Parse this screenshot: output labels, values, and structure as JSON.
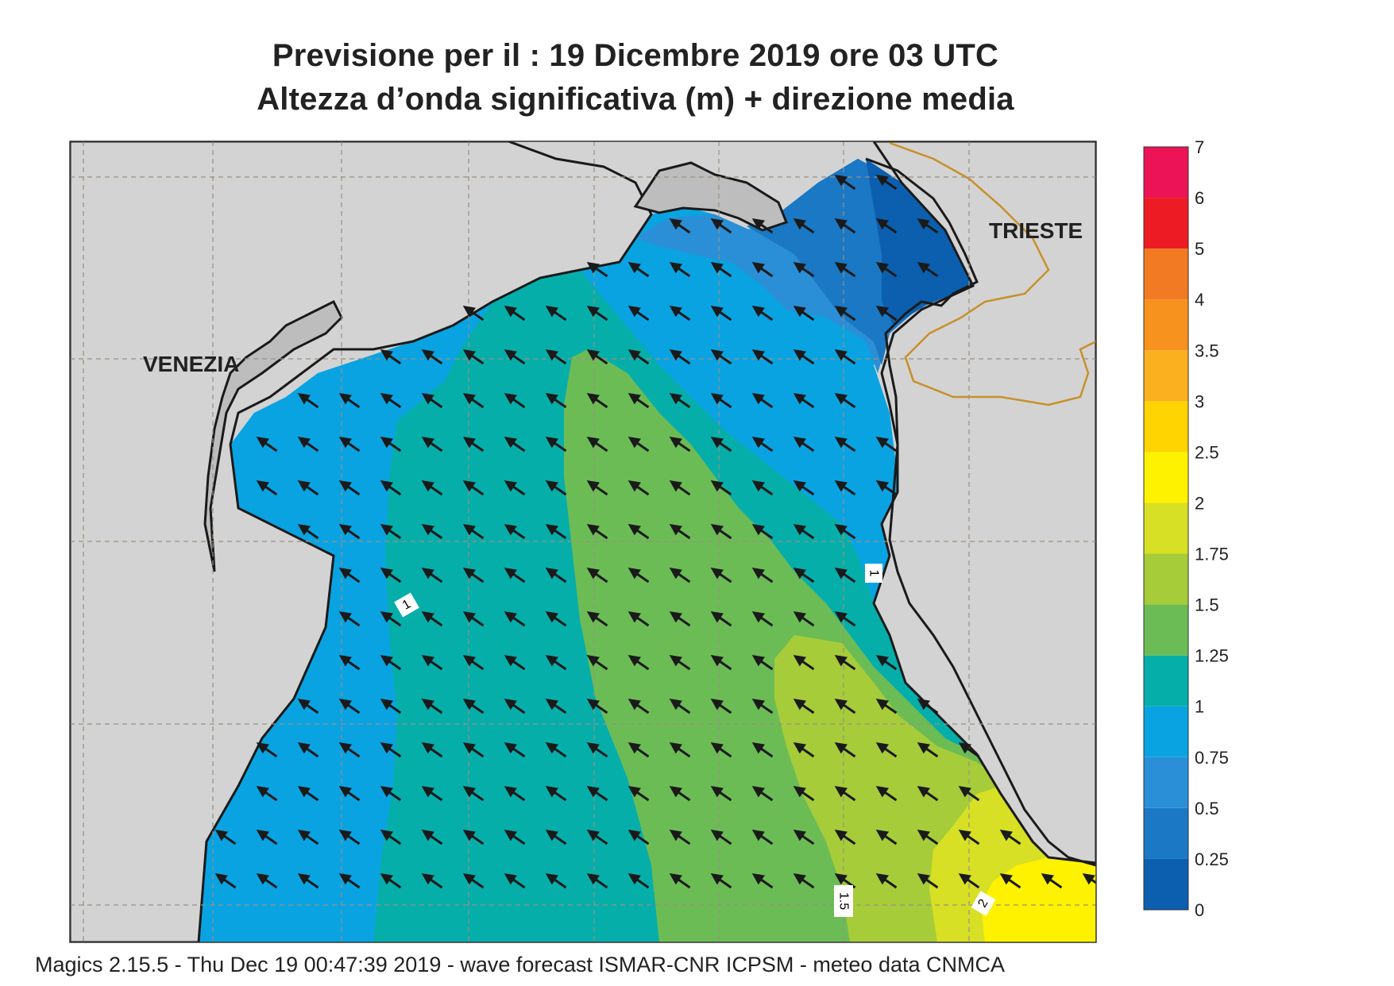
{
  "title": {
    "line1": "Previsione per il  :  19 Dicembre  2019   ore 03 UTC",
    "line2": "Altezza d’onda significativa (m) + direzione media"
  },
  "places": {
    "venezia": "VENEZIA",
    "trieste": "TRIESTE"
  },
  "colorbar": {
    "levels": [
      {
        "label": "0",
        "color": "#0b5fae"
      },
      {
        "label": "0.25",
        "color": "#1a78c4"
      },
      {
        "label": "0.5",
        "color": "#2a8fd6"
      },
      {
        "label": "0.75",
        "color": "#0aa3e2"
      },
      {
        "label": "1",
        "color": "#06aeaa"
      },
      {
        "label": "1.25",
        "color": "#6cbc55"
      },
      {
        "label": "1.5",
        "color": "#a6cc3a"
      },
      {
        "label": "1.75",
        "color": "#d7e024"
      },
      {
        "label": "2",
        "color": "#fff200"
      },
      {
        "label": "2.5",
        "color": "#ffd400"
      },
      {
        "label": "3",
        "color": "#fbb01f"
      },
      {
        "label": "3.5",
        "color": "#f7921e"
      },
      {
        "label": "4",
        "color": "#f27a22"
      },
      {
        "label": "5",
        "color": "#ed1c24"
      },
      {
        "label": "6",
        "color": "#ec1456"
      },
      {
        "label": "7",
        "color": ""
      }
    ]
  },
  "contour_labels": {
    "west": "1",
    "east": "1",
    "south": "1.5",
    "southeast": "2"
  },
  "colors": {
    "land": "#d3d3d3",
    "coast": "#1a1a1a",
    "border": "#c8902a",
    "grid": "#9a9080",
    "arrow": "#1a1a1a"
  },
  "footer": "Magics 2.15.5 - Thu Dec 19 00:47:39 2019 - wave forecast  ISMAR-CNR  ICPSM - meteo data   CNMCA"
}
